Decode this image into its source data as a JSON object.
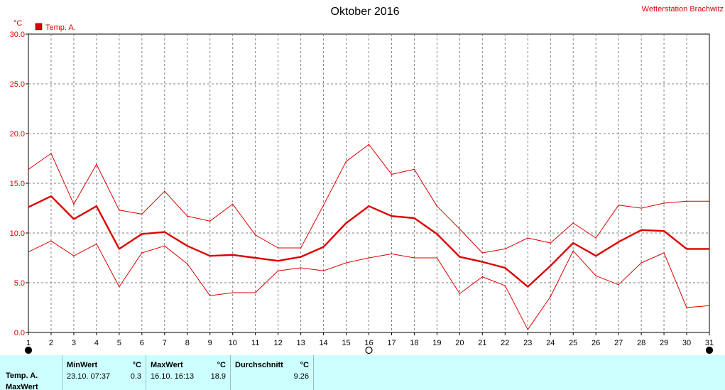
{
  "station": "Wetterstation Brachwitz",
  "chart_data": {
    "type": "line",
    "title": "Oktober 2016",
    "ylabel": "°C",
    "ylim": [
      0,
      30
    ],
    "ytick_labels": [
      "0.0",
      "5.0",
      "10.0",
      "15.0",
      "20.0",
      "25.0",
      "30.0"
    ],
    "categories": [
      "1",
      "2",
      "3",
      "4",
      "5",
      "6",
      "7",
      "8",
      "9",
      "10",
      "11",
      "12",
      "13",
      "14",
      "15",
      "16",
      "17",
      "18",
      "19",
      "20",
      "21",
      "22",
      "23",
      "24",
      "25",
      "26",
      "27",
      "28",
      "29",
      "30",
      "31"
    ],
    "grid": true,
    "legend": "top-left",
    "series": [
      {
        "name": "Temp. A.",
        "role": "avg",
        "color": "#dd0000",
        "values": [
          12.6,
          13.7,
          11.4,
          12.7,
          8.4,
          9.9,
          10.1,
          8.7,
          7.7,
          7.8,
          7.5,
          7.2,
          7.6,
          8.6,
          11.0,
          12.7,
          11.7,
          11.5,
          9.9,
          7.6,
          7.1,
          6.5,
          4.6,
          6.7,
          9.0,
          7.7,
          9.1,
          10.3,
          10.2,
          8.4,
          8.4
        ]
      },
      {
        "role": "max",
        "color": "#dd0000",
        "values": [
          16.4,
          18.0,
          12.9,
          16.9,
          12.3,
          11.9,
          14.2,
          11.7,
          11.2,
          12.9,
          9.8,
          8.5,
          8.5,
          12.8,
          17.2,
          18.9,
          15.9,
          16.4,
          12.7,
          10.4,
          8.0,
          8.4,
          9.5,
          9.0,
          11.0,
          9.5,
          12.8,
          12.5,
          13.0,
          13.2,
          13.2
        ]
      },
      {
        "role": "min",
        "color": "#dd0000",
        "values": [
          8.1,
          9.2,
          7.7,
          8.9,
          4.6,
          8.0,
          8.7,
          6.9,
          3.7,
          4.0,
          4.0,
          6.2,
          6.5,
          6.2,
          7.0,
          7.5,
          7.9,
          7.5,
          7.5,
          3.9,
          5.6,
          4.7,
          0.3,
          3.6,
          8.2,
          5.7,
          4.8,
          7.0,
          8.0,
          2.5,
          2.7
        ]
      }
    ],
    "markers": [
      {
        "day": "1",
        "symbol": "filled-circle"
      },
      {
        "day": "16",
        "symbol": "open-circle"
      },
      {
        "day": "31",
        "symbol": "filled-circle"
      }
    ]
  },
  "stats": {
    "row_labels": [
      "Temp. A.",
      "MaxWert"
    ],
    "min_header": "MinWert",
    "min_unit": "°C",
    "min_date": "23.10.  07:37",
    "min_value": "0.3",
    "max_header": "MaxWert",
    "max_unit": "°C",
    "max_date": "16.10.  16:13",
    "max_value": "18.9",
    "avg_header": "Durchschnitt",
    "avg_unit": "°C",
    "avg_value": "9.26"
  }
}
